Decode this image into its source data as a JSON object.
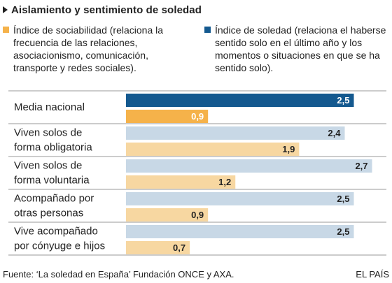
{
  "header": {
    "title": "Aislamiento y sentimiento de soledad"
  },
  "legend": {
    "sociability": {
      "label": "Índice de sociabilidad (relaciona la frecuencia de las relaciones, asociacionismo, comunicación, transporte y redes sociales).",
      "color": "#f5b24a"
    },
    "loneliness": {
      "label": "Índice de soledad (relaciona el haberse sentido solo en el último año y los momentos o situaciones en que se ha sentido solo).",
      "color": "#14598f"
    }
  },
  "chart_data": {
    "type": "bar",
    "orientation": "horizontal",
    "categories": [
      [
        "Media nacional"
      ],
      [
        "Viven solos de",
        "forma obligatoria"
      ],
      [
        "Viven solos de",
        "forma voluntaria"
      ],
      [
        "Acompañado por",
        "otras personas"
      ],
      [
        "Vive acompañado",
        "por cónyuge e hijos"
      ]
    ],
    "series": [
      {
        "key": "loneliness",
        "values": [
          2.5,
          2.4,
          2.7,
          2.5,
          2.5
        ],
        "labels": [
          "2,5",
          "2,4",
          "2,7",
          "2,5",
          "2,5"
        ],
        "color": "#14598f",
        "color_light": "#c8d8e6"
      },
      {
        "key": "sociability",
        "values": [
          0.9,
          1.9,
          1.2,
          0.9,
          0.7
        ],
        "labels": [
          "0,9",
          "1,9",
          "1,2",
          "0,9",
          "0,7"
        ],
        "color": "#f5b24a",
        "color_light": "#f7d7a1"
      }
    ],
    "highlight_index": 0,
    "xlim": [
      0,
      2.7
    ]
  },
  "footer": {
    "source": "Fuente: ‘La soledad en España’ Fundación ONCE y AXA.",
    "brand": "EL PAÍS"
  }
}
